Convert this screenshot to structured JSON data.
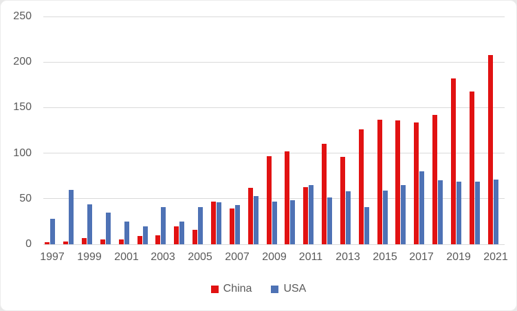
{
  "chart_data": {
    "type": "bar",
    "title": "",
    "xlabel": "",
    "ylabel": "",
    "categories": [
      1997,
      1998,
      1999,
      2000,
      2001,
      2002,
      2003,
      2004,
      2005,
      2006,
      2007,
      2008,
      2009,
      2010,
      2011,
      2012,
      2013,
      2014,
      2015,
      2016,
      2017,
      2018,
      2019,
      2020,
      2021
    ],
    "series": [
      {
        "name": "China",
        "color": "#e11212",
        "values": [
          2,
          3,
          7,
          5,
          5,
          9,
          10,
          20,
          16,
          47,
          39,
          62,
          97,
          102,
          63,
          110,
          96,
          126,
          137,
          136,
          134,
          142,
          182,
          168,
          208
        ]
      },
      {
        "name": "USA",
        "color": "#4e72b5",
        "values": [
          28,
          60,
          44,
          35,
          25,
          20,
          41,
          25,
          41,
          46,
          43,
          53,
          47,
          48,
          65,
          51,
          58,
          41,
          59,
          65,
          80,
          70,
          69,
          69,
          71
        ]
      }
    ],
    "ylim": [
      0,
      250
    ],
    "yticks": [
      0,
      50,
      100,
      150,
      200,
      250
    ],
    "xtick_labels": [
      "1997",
      "1999",
      "2001",
      "2003",
      "2005",
      "2007",
      "2009",
      "2011",
      "2013",
      "2015",
      "2017",
      "2019",
      "2021"
    ],
    "xtick_step": 2,
    "grid": "horizontal",
    "legend_position": "bottom"
  },
  "colors": {
    "gridline": "#d9d9d9",
    "axis_text": "#595959",
    "background": "#ffffff",
    "page_background": "#e8e8e8"
  }
}
